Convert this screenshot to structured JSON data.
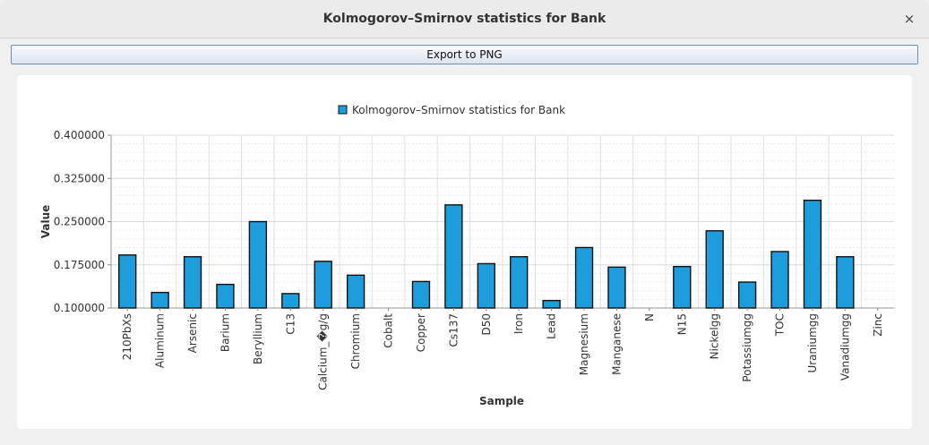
{
  "window": {
    "title": "Kolmogorov–Smirnov statistics for Bank",
    "close_glyph": "×"
  },
  "toolbar": {
    "export_label": "Export to PNG"
  },
  "chart_data": {
    "type": "bar",
    "title": "",
    "xlabel": "Sample",
    "ylabel": "Value",
    "ylim": [
      0.1,
      0.4
    ],
    "yticks": [
      "0.400000",
      "0.325000",
      "0.250000",
      "0.175000",
      "0.100000"
    ],
    "grid": true,
    "legend_position": "top-center",
    "bar_color": "#1e9ddc",
    "categories": [
      "210PbXs",
      "Aluminum",
      "Arsenic",
      "Barium",
      "Beryllium",
      "C13",
      "Calcium_�g/g",
      "Chromium",
      "Cobalt",
      "Copper",
      "Cs137",
      "D50",
      "Iron",
      "Lead",
      "Magnesium",
      "Manganese",
      "N",
      "N15",
      "Nickelgg",
      "Potassiumgg",
      "TOC",
      "Uraniumgg",
      "Vanadiumgg",
      "Zinc"
    ],
    "series": [
      {
        "name": "Kolmogorov–Smirnov statistics for Bank",
        "values": [
          0.192,
          0.127,
          0.189,
          0.141,
          0.25,
          0.125,
          0.181,
          0.157,
          null,
          0.146,
          0.279,
          0.177,
          0.189,
          0.113,
          0.205,
          0.171,
          null,
          0.172,
          0.234,
          0.145,
          0.198,
          0.287,
          0.189,
          null
        ]
      }
    ]
  }
}
